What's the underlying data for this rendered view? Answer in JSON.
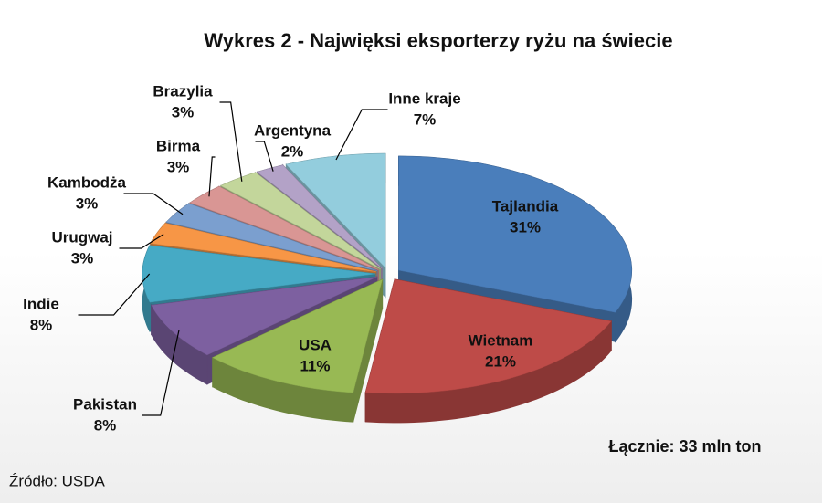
{
  "chart_data": {
    "type": "pie",
    "title": "Wykres 2 - Najwięksi eksporterzy ryżu na świecie",
    "categories": [
      "Tajlandia",
      "Wietnam",
      "USA",
      "Pakistan",
      "Indie",
      "Urugwaj",
      "Kambodża",
      "Birma",
      "Brazylia",
      "Argentyna",
      "Inne kraje"
    ],
    "values": [
      31,
      21,
      11,
      8,
      8,
      3,
      3,
      3,
      3,
      2,
      7
    ],
    "value_labels": [
      "31%",
      "21%",
      "11%",
      "8%",
      "8%",
      "3%",
      "3%",
      "3%",
      "3%",
      "2%",
      "7%"
    ],
    "colors": [
      "#4a7ebb",
      "#be4b48",
      "#98b954",
      "#7d60a0",
      "#46aac5",
      "#f79646",
      "#7b9fcf",
      "#d99694",
      "#c3d69b",
      "#b3a2c7",
      "#93cddd"
    ],
    "annotation": "Łącznie: 33 mln ton",
    "source": "Źródło: USDA"
  }
}
